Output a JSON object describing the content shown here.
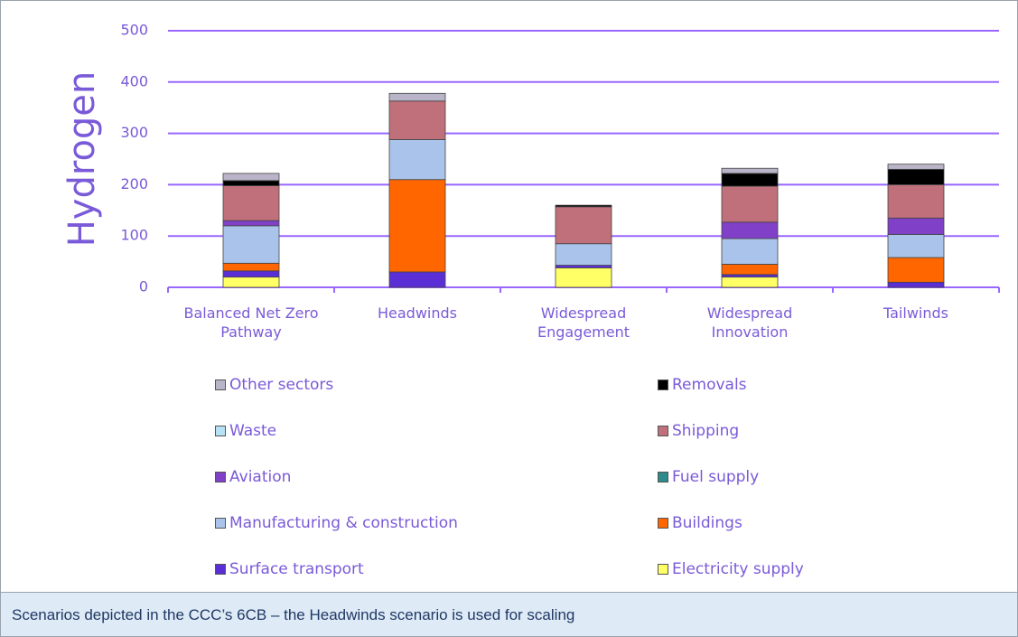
{
  "chart_data": {
    "type": "bar",
    "stacked": true,
    "ylabel": "Hydrogen",
    "categories": [
      "Balanced Net Zero Pathway",
      "Headwinds",
      "Widespread Engagement",
      "Widespread Innovation",
      "Tailwinds"
    ],
    "series": [
      {
        "name": "Other sectors",
        "color": "#bab4c8",
        "values": [
          14,
          15,
          0,
          10,
          10
        ]
      },
      {
        "name": "Removals",
        "color": "#000000",
        "values": [
          10,
          0,
          3,
          25,
          30
        ]
      },
      {
        "name": "Waste",
        "color": "#b7e1f5",
        "values": [
          0,
          0,
          0,
          0,
          0
        ]
      },
      {
        "name": "Shipping",
        "color": "#c0707a",
        "values": [
          68,
          75,
          72,
          70,
          65
        ]
      },
      {
        "name": "Aviation",
        "color": "#8040c8",
        "values": [
          10,
          0,
          0,
          32,
          32
        ]
      },
      {
        "name": "Fuel supply",
        "color": "#2e8b8b",
        "values": [
          0,
          0,
          0,
          0,
          0
        ]
      },
      {
        "name": "Manufacturing & construction",
        "color": "#a9c3ea",
        "values": [
          73,
          78,
          42,
          50,
          45
        ]
      },
      {
        "name": "Buildings",
        "color": "#ff6600",
        "values": [
          15,
          180,
          0,
          20,
          48
        ]
      },
      {
        "name": "Surface transport",
        "color": "#5b2fd6",
        "values": [
          12,
          30,
          5,
          5,
          10
        ]
      },
      {
        "name": "Electricity supply",
        "color": "#ffff66",
        "values": [
          20,
          0,
          38,
          20,
          0
        ]
      }
    ],
    "ylim": [
      0,
      500
    ],
    "yticks": [
      0,
      100,
      200,
      300,
      400,
      500
    ],
    "grid": true
  },
  "caption": "Scenarios depicted in the CCC’s 6CB – the Headwinds scenario is used for scaling"
}
